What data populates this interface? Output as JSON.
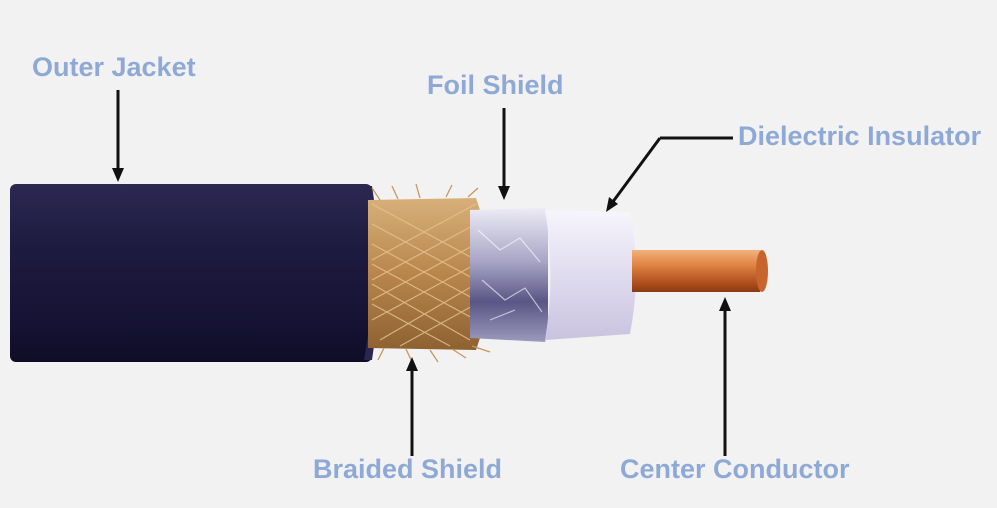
{
  "labels": {
    "outer_jacket": "Outer Jacket",
    "foil_shield": "Foil Shield",
    "dielectric_insulator": "Dielectric Insulator",
    "braided_shield": "Braided Shield",
    "center_conductor": "Center Conductor"
  },
  "colors": {
    "background": "#f2f2f2",
    "label": "#8fa9d6",
    "arrow": "#111111",
    "jacket": "#1f1c3f",
    "braid": "#c89a5e",
    "foil": "#b9b6d2",
    "dielectric": "#e6e2f2",
    "conductor": "#d7783d"
  }
}
